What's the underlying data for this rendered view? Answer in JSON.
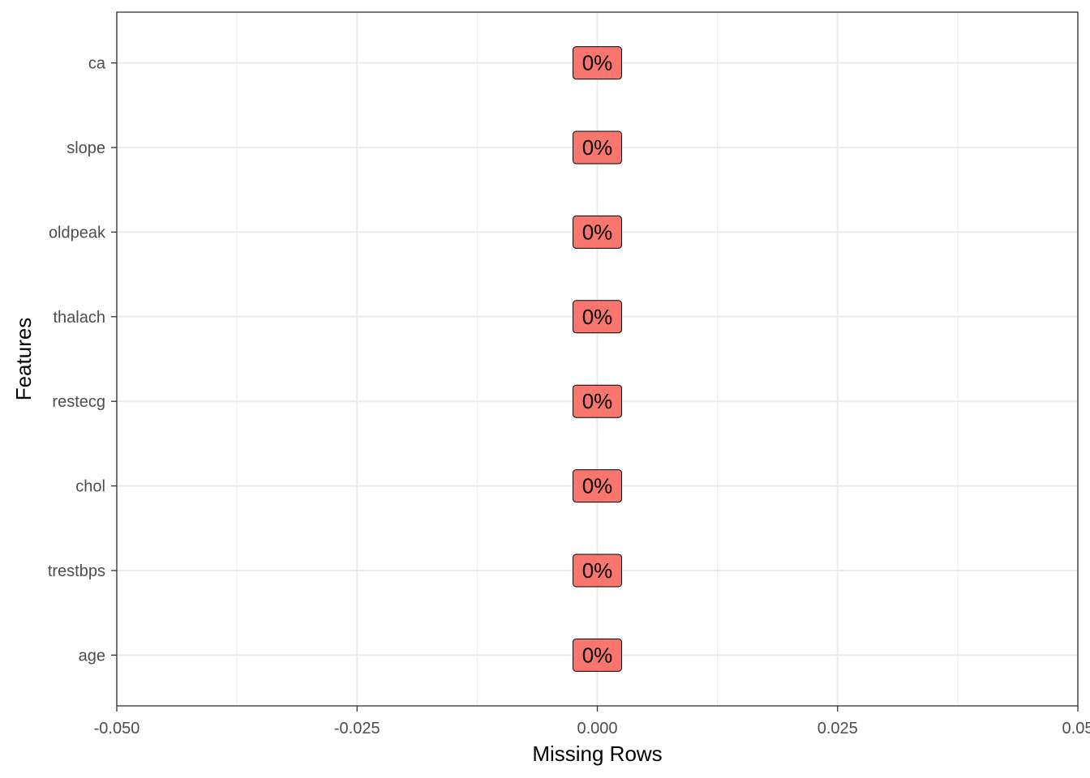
{
  "chart_data": {
    "type": "bar",
    "orientation": "horizontal",
    "categories": [
      "age",
      "trestbps",
      "chol",
      "restecg",
      "thalach",
      "oldpeak",
      "slope",
      "ca"
    ],
    "values": [
      0,
      0,
      0,
      0,
      0,
      0,
      0,
      0
    ],
    "labels": [
      "0%",
      "0%",
      "0%",
      "0%",
      "0%",
      "0%",
      "0%",
      "0%"
    ],
    "xlabel": "Missing Rows",
    "ylabel": "Features",
    "xlim": [
      -0.05,
      0.05
    ],
    "x_ticks": [
      -0.05,
      -0.025,
      0.0,
      0.025,
      0.05
    ],
    "x_tick_labels": [
      "-0.050",
      "-0.025",
      "0.000",
      "0.025",
      "0.05"
    ],
    "grid": true,
    "legend": "none",
    "colors": {
      "label_fill": "#f8766d",
      "grid": "#ebebeb",
      "panel_border": "#333333",
      "tick_text": "#4d4d4d"
    }
  }
}
